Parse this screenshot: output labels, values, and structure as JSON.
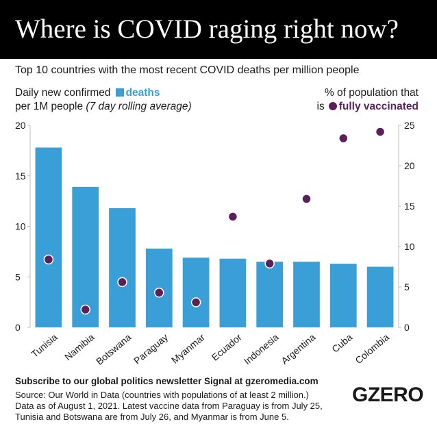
{
  "header": {
    "title": "Where is COVID raging right now?"
  },
  "subtitle": "Top 10 countries with the most recent COVID deaths per million people",
  "legend_left": {
    "line1_prefix": "Daily new confirmed",
    "line1_key": "deaths",
    "line2_prefix": "per 1M people",
    "line2_italic": "(7 day rolling average)"
  },
  "legend_right": {
    "line1": "% of population that",
    "line2_prefix": "is",
    "line2_key": "fully vaccinated"
  },
  "colors": {
    "deaths": "#3a9fd6",
    "vaccinated": "#5b1f5c",
    "axis": "#bdbdbd",
    "text": "#1a1a1a"
  },
  "chart_data": {
    "type": "bar",
    "categories": [
      "Tunisia",
      "Namibia",
      "Botswana",
      "Paraguay",
      "Myanmar",
      "Ecuador",
      "Indonesia",
      "Argentina",
      "Cuba",
      "Colombia"
    ],
    "series": [
      {
        "name": "deaths",
        "axis": "left",
        "kind": "bar",
        "values": [
          17.8,
          13.9,
          11.8,
          7.8,
          6.9,
          6.8,
          6.5,
          6.5,
          6.3,
          6.0
        ]
      },
      {
        "name": "fully vaccinated",
        "axis": "right",
        "kind": "scatter",
        "values": [
          8.4,
          2.2,
          5.6,
          4.3,
          3.1,
          13.7,
          7.9,
          15.9,
          23.4,
          24.2
        ]
      }
    ],
    "yleft": {
      "range": [
        0,
        20
      ],
      "ticks": [
        0,
        5,
        10,
        15,
        20
      ]
    },
    "yright": {
      "range": [
        0,
        25
      ],
      "ticks": [
        0,
        5,
        10,
        15,
        20,
        25
      ]
    },
    "grid": false
  },
  "footer": {
    "cta": "Subscribe to our global politics newsletter Signal at gzeromedia.com",
    "source_lines": [
      "Source: Our World in Data (countries with populations of at least 2 million.)",
      "Data as of August 1, 2021. Latest vaccine data from Paraguay is from July 25,",
      "Tunisia and Botswana are from July 26, and Myanmar is from June 5."
    ],
    "logo": "GZERO"
  }
}
